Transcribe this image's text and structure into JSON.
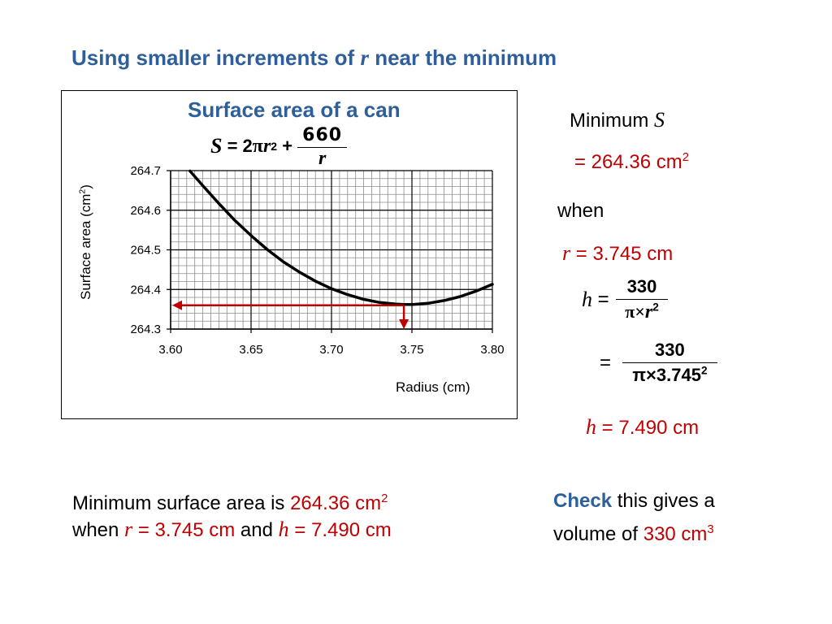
{
  "heading": {
    "pre": "Using smaller increments of ",
    "var": "r",
    "post": " near the minimum"
  },
  "chart_data": {
    "type": "line",
    "title": "Surface area of a can",
    "formula": {
      "lhs": "S",
      "eq": " = 2",
      "pi": "π",
      "r": "r",
      "exp": "2",
      "plus": " + ",
      "num": "660",
      "den": "r"
    },
    "xlabel": "Radius (cm)",
    "ylabel_pre": "Surface area (cm",
    "ylabel_exp": "2",
    "ylabel_post": ")",
    "xlim": [
      3.6,
      3.8
    ],
    "ylim": [
      264.3,
      264.7
    ],
    "xticks": [
      3.6,
      3.65,
      3.7,
      3.75,
      3.8
    ],
    "xtick_labels": [
      "3.60",
      "3.65",
      "3.70",
      "3.75",
      "3.80"
    ],
    "yticks": [
      264.3,
      264.4,
      264.5,
      264.6,
      264.7
    ],
    "ytick_labels": [
      "264.3",
      "264.4",
      "264.5",
      "264.6",
      "264.7"
    ],
    "grid": true,
    "minor_x_step": 0.005,
    "minor_y_step": 0.02,
    "series": [
      {
        "x": [
          3.612,
          3.62,
          3.63,
          3.64,
          3.65,
          3.66,
          3.67,
          3.68,
          3.69,
          3.7,
          3.71,
          3.72,
          3.73,
          3.74,
          3.745,
          3.75,
          3.76,
          3.77,
          3.78,
          3.79,
          3.8
        ],
        "y": [
          264.699,
          264.662,
          264.617,
          264.574,
          264.536,
          264.501,
          264.47,
          264.444,
          264.421,
          264.402,
          264.387,
          264.375,
          264.367,
          264.363,
          264.362,
          264.362,
          264.365,
          264.372,
          264.382,
          264.396,
          264.413
        ]
      }
    ],
    "annotation": {
      "x": 3.745,
      "y": 264.36,
      "color": "#c00000"
    }
  },
  "side": {
    "min_label": "Minimum ",
    "min_var": "S",
    "s_value": "= 264.36 cm",
    "s_exp": "2",
    "when": "when",
    "r_var": "r",
    "r_value": " = 3.745 cm",
    "h_var": "h",
    "eq": " =",
    "h_num1": "330",
    "h_den1_pi": "π×",
    "h_den1_r": "r",
    "h_den1_exp": "2",
    "eq2": "=",
    "h_num2": "330",
    "h_den2": "π×3.745",
    "h_den2_exp": "2",
    "h_result": " = 7.490 cm"
  },
  "summary": {
    "line1_pre": "Minimum surface area is ",
    "line1_val": "264.36 cm",
    "line1_exp": "2",
    "line2_pre": "when ",
    "r_var": "r",
    "r_val": " = 3.745 cm",
    "and": " and ",
    "h_var": "h",
    "h_val": " = 7.490 cm"
  },
  "check": {
    "bold": "Check",
    "rest1": " this gives a",
    "line2_pre": "volume of ",
    "vol": "330 cm",
    "vol_exp": "3"
  }
}
